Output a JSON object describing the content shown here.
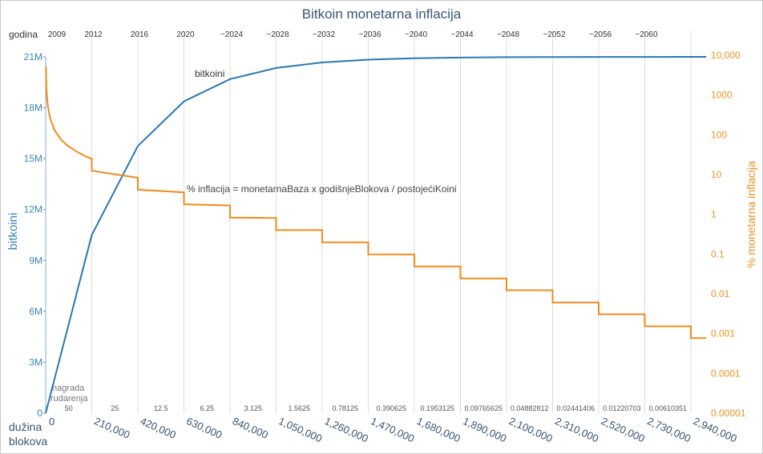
{
  "chart_data": {
    "type": "line",
    "title": "Bitkoin monetarna inflacija",
    "xlabel": "dužina blokova",
    "ylabel_left": "bitkoini",
    "ylabel_right": "% monetarna inflacija",
    "year_axis_label": "godina",
    "reward_axis_label": "nagrada rudarenja",
    "annotation_formula": "% inflacija = monetarnaBaza x godišnjeBlokova / postojećiKoini",
    "annotation_series": "bitkoini",
    "x_ticks": [
      0,
      210000,
      420000,
      630000,
      840000,
      1050000,
      1260000,
      1470000,
      1680000,
      1890000,
      2100000,
      2310000,
      2520000,
      2730000,
      2940000
    ],
    "x_tick_labels": [
      "0",
      "210,000",
      "420,000",
      "630,000",
      "840,000",
      "1,050,000",
      "1,260,000",
      "1,470,000",
      "1,680,000",
      "1,890,000",
      "2,100,000",
      "2,310,000",
      "2,520,000",
      "2,730,000",
      "2,940,000"
    ],
    "year_labels": [
      "2009",
      "2012",
      "2016",
      "2020",
      "~2024",
      "~2028",
      "~2032",
      "~2036",
      "~2040",
      "~2044",
      "~2048",
      "~2052",
      "~2056",
      "~2060"
    ],
    "reward_labels": [
      "50",
      "25",
      "12.5",
      "6.25",
      "3.125",
      "1.5625",
      "0.78125",
      "0.390625",
      "0.1953125",
      "0.09765625",
      "0.04882812",
      "0.02441406",
      "0.01220703",
      "0.00610351"
    ],
    "ylim_left": [
      0,
      21000000
    ],
    "y_left_ticks": [
      0,
      3000000,
      6000000,
      9000000,
      12000000,
      15000000,
      18000000,
      21000000
    ],
    "y_left_tick_labels": [
      "0",
      "3M",
      "6M",
      "9M",
      "12M",
      "15M",
      "18M",
      "21M"
    ],
    "y_right_scale": "log",
    "ylim_right": [
      1e-05,
      10000
    ],
    "y_right_ticks": [
      1e-05,
      0.0001,
      0.001,
      0.01,
      0.1,
      1,
      10,
      100,
      1000,
      10000
    ],
    "y_right_tick_labels": [
      "0.00001",
      "0.0001",
      "0.001",
      "0.01",
      "0.1",
      "1",
      "10",
      "100",
      "1000",
      "10,000"
    ],
    "grid": "vertical",
    "series": [
      {
        "name": "bitkoini",
        "axis": "left",
        "color": "#2a77b5",
        "x": [
          0,
          210000,
          420000,
          630000,
          840000,
          1050000,
          1260000,
          1470000,
          1680000,
          1890000,
          2100000,
          2310000,
          2520000,
          2730000,
          2940000,
          3010000
        ],
        "y": [
          0,
          10500000,
          15750000,
          18375000,
          19687500,
          20343750,
          20671875,
          20835938,
          20917969,
          20958984,
          20979492,
          20989746,
          20994873,
          20997437,
          20998718,
          20999000
        ]
      },
      {
        "name": "% inflacija",
        "axis": "right",
        "color": "#f28b1c",
        "initial_curve": {
          "x": [
            1000,
            3000,
            6000,
            10000,
            20000,
            40000,
            70000,
            100000,
            140000,
            180000,
            209000
          ],
          "y": [
            5256,
            1752,
            876,
            526,
            263,
            131,
            75,
            53,
            38,
            29,
            25.1
          ]
        },
        "steps": [
          {
            "x_start": 210000,
            "x_end": 420000,
            "y_start": 12.5,
            "y_end": 8.3
          },
          {
            "x_start": 420000,
            "x_end": 630000,
            "y_start": 4.17,
            "y_end": 3.57
          },
          {
            "x_start": 630000,
            "x_end": 840000,
            "y_start": 1.79,
            "y_end": 1.67
          },
          {
            "x_start": 840000,
            "x_end": 1050000,
            "y_start": 0.83,
            "y_end": 0.81
          },
          {
            "x_start": 1050000,
            "x_end": 1260000,
            "y_start": 0.4,
            "y_end": 0.4
          },
          {
            "x_start": 1260000,
            "x_end": 1470000,
            "y_start": 0.198,
            "y_end": 0.198
          },
          {
            "x_start": 1470000,
            "x_end": 1680000,
            "y_start": 0.099,
            "y_end": 0.098
          },
          {
            "x_start": 1680000,
            "x_end": 1890000,
            "y_start": 0.049,
            "y_end": 0.049
          },
          {
            "x_start": 1890000,
            "x_end": 2100000,
            "y_start": 0.0245,
            "y_end": 0.0245
          },
          {
            "x_start": 2100000,
            "x_end": 2310000,
            "y_start": 0.0123,
            "y_end": 0.0123
          },
          {
            "x_start": 2310000,
            "x_end": 2520000,
            "y_start": 0.0061,
            "y_end": 0.0061
          },
          {
            "x_start": 2520000,
            "x_end": 2730000,
            "y_start": 0.00306,
            "y_end": 0.00306
          },
          {
            "x_start": 2730000,
            "x_end": 2940000,
            "y_start": 0.00153,
            "y_end": 0.00153
          },
          {
            "x_start": 2940000,
            "x_end": 3010000,
            "y_start": 0.00077,
            "y_end": 0.00077
          }
        ]
      }
    ]
  }
}
